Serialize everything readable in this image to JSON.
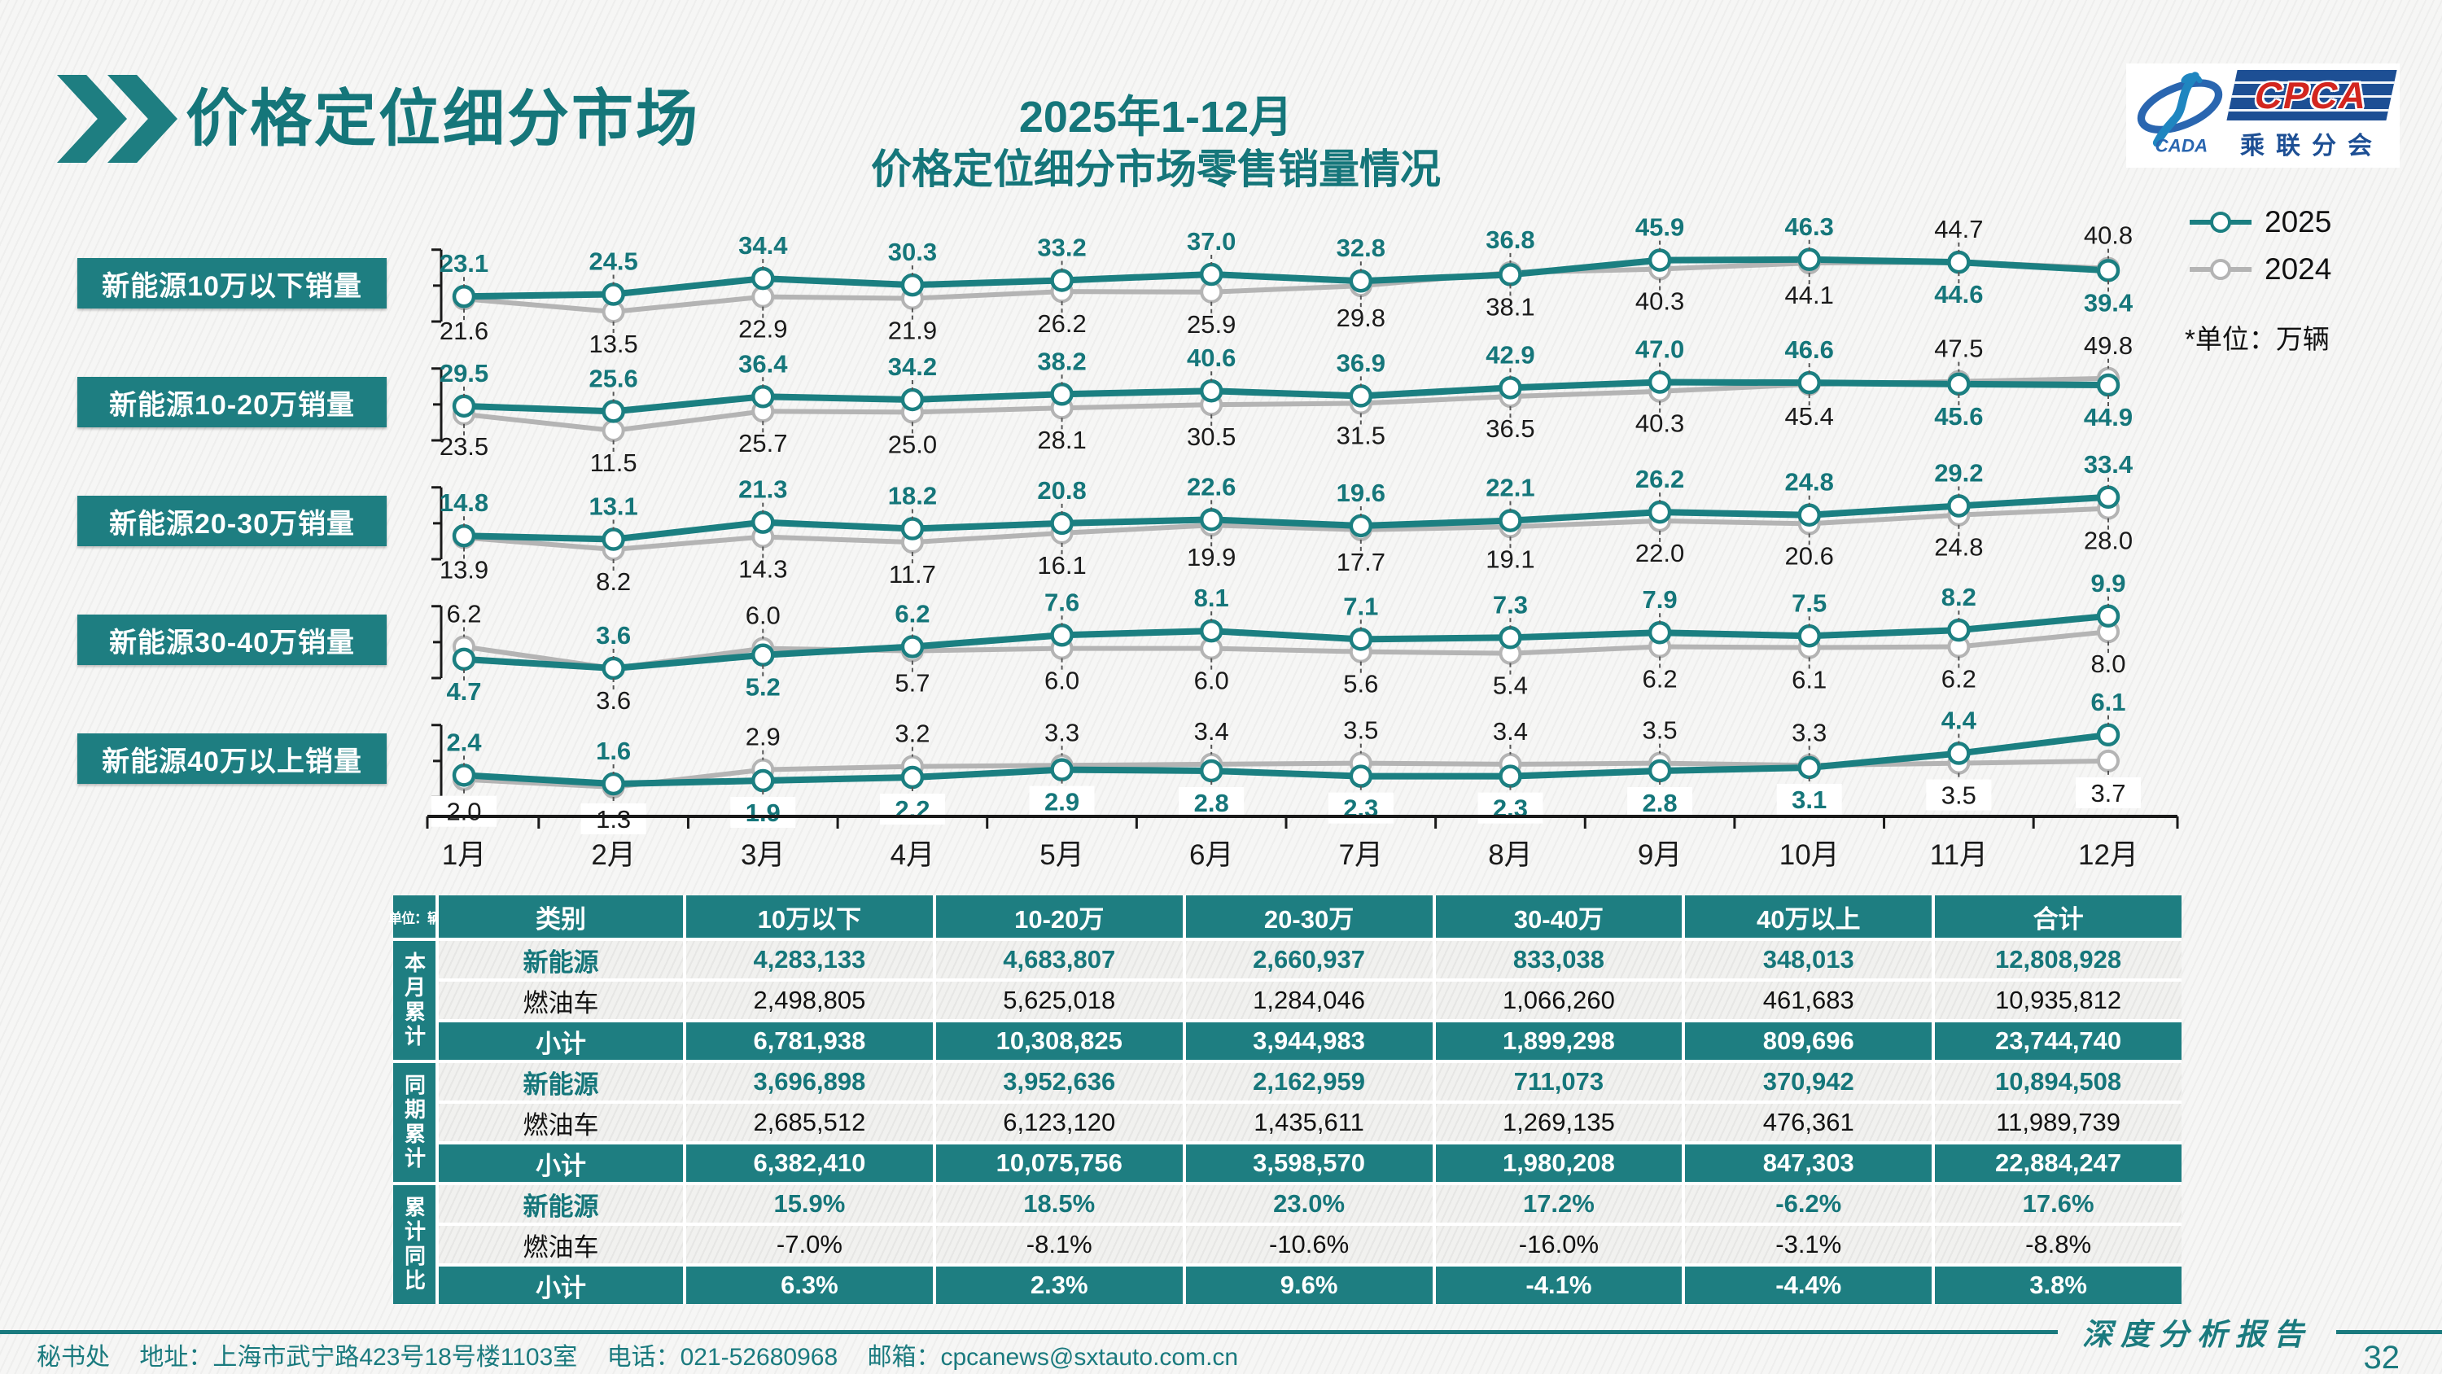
{
  "page": {
    "title": "价格定位细分市场",
    "chart_title_line1": "2025年1-12月",
    "chart_title_line2": "价格定位细分市场零售销量情况",
    "unit_note": "*单位：万辆",
    "report_label": "深度分析报告",
    "page_number": "32"
  },
  "logo": {
    "cpca": "CPCA",
    "cada": "CADA",
    "sub": "乘联分会"
  },
  "legend": [
    {
      "label": "2025",
      "color": "#1b7f81"
    },
    {
      "label": "2024",
      "color": "#b4b4b4"
    }
  ],
  "chart_data": {
    "type": "line",
    "unit": "万辆",
    "x": [
      "1月",
      "2月",
      "3月",
      "4月",
      "5月",
      "6月",
      "7月",
      "8月",
      "9月",
      "10月",
      "11月",
      "12月"
    ],
    "series_colors": {
      "2025": "#1b7f81",
      "2024": "#b4b4b4"
    },
    "panels": [
      {
        "label": "新能源10万以下销量",
        "series": [
          {
            "name": "2025",
            "values": [
              23.1,
              24.5,
              34.4,
              30.3,
              33.2,
              37.0,
              32.8,
              36.8,
              45.9,
              46.3,
              44.6,
              39.4
            ]
          },
          {
            "name": "2024",
            "values": [
              21.6,
              13.5,
              22.9,
              21.9,
              26.2,
              25.9,
              29.8,
              38.1,
              40.3,
              44.1,
              44.7,
              40.8
            ]
          }
        ],
        "label_top": [
          "2025",
          "2025",
          "2025",
          "2025",
          "2025",
          "2025",
          "2025",
          "2025",
          "2025",
          "2025",
          "2024",
          "2024"
        ]
      },
      {
        "label": "新能源10-20万销量",
        "series": [
          {
            "name": "2025",
            "values": [
              29.5,
              25.6,
              36.4,
              34.2,
              38.2,
              40.6,
              36.9,
              42.9,
              47.0,
              46.6,
              45.6,
              44.9
            ]
          },
          {
            "name": "2024",
            "values": [
              23.5,
              11.5,
              25.7,
              25.0,
              28.1,
              30.5,
              31.5,
              36.5,
              40.3,
              45.4,
              47.5,
              49.8
            ]
          }
        ],
        "label_top": [
          "2025",
          "2025",
          "2025",
          "2025",
          "2025",
          "2025",
          "2025",
          "2025",
          "2025",
          "2025",
          "2024",
          "2024"
        ]
      },
      {
        "label": "新能源20-30万销量",
        "series": [
          {
            "name": "2025",
            "values": [
              14.8,
              13.1,
              21.3,
              18.2,
              20.8,
              22.6,
              19.6,
              22.1,
              26.2,
              24.8,
              29.2,
              33.4
            ]
          },
          {
            "name": "2024",
            "values": [
              13.9,
              8.2,
              14.3,
              11.7,
              16.1,
              19.9,
              17.7,
              19.1,
              22.0,
              20.6,
              24.8,
              28.0
            ]
          }
        ],
        "label_top": [
          "2025",
          "2025",
          "2025",
          "2025",
          "2025",
          "2025",
          "2025",
          "2025",
          "2025",
          "2025",
          "2025",
          "2025"
        ]
      },
      {
        "label": "新能源30-40万销量",
        "series": [
          {
            "name": "2025",
            "values": [
              4.7,
              3.6,
              5.2,
              6.2,
              7.6,
              8.1,
              7.1,
              7.3,
              7.9,
              7.5,
              8.2,
              9.9
            ]
          },
          {
            "name": "2024",
            "values": [
              6.2,
              3.6,
              6.0,
              5.7,
              6.0,
              6.0,
              5.6,
              5.4,
              6.2,
              6.1,
              6.2,
              8.0
            ]
          }
        ],
        "label_top": [
          "2024",
          "2025",
          "2024",
          "2025",
          "2025",
          "2025",
          "2025",
          "2025",
          "2025",
          "2025",
          "2025",
          "2025"
        ]
      },
      {
        "label": "新能源40万以上销量",
        "series": [
          {
            "name": "2025",
            "values": [
              2.4,
              1.6,
              1.9,
              2.2,
              2.9,
              2.8,
              2.3,
              2.3,
              2.8,
              3.1,
              4.4,
              6.1
            ]
          },
          {
            "name": "2024",
            "values": [
              2.0,
              1.3,
              2.9,
              3.2,
              3.3,
              3.4,
              3.5,
              3.4,
              3.5,
              3.3,
              3.5,
              3.7
            ]
          }
        ],
        "label_top": [
          "2025",
          "2025",
          "2024",
          "2024",
          "2024",
          "2024",
          "2024",
          "2024",
          "2024",
          "2024",
          "2025",
          "2025"
        ]
      }
    ]
  },
  "table": {
    "unit_label": "单位：辆",
    "headers": [
      "类别",
      "10万以下",
      "10-20万",
      "20-30万",
      "30-40万",
      "40万以上",
      "合计"
    ],
    "groups": [
      {
        "label": "本月累计",
        "rows": [
          {
            "label": "新能源",
            "type": "nev",
            "cells": [
              "4,283,133",
              "4,683,807",
              "2,660,937",
              "833,038",
              "348,013",
              "12,808,928"
            ]
          },
          {
            "label": "燃油车",
            "type": "ice",
            "cells": [
              "2,498,805",
              "5,625,018",
              "1,284,046",
              "1,066,260",
              "461,683",
              "10,935,812"
            ]
          },
          {
            "label": "小计",
            "type": "sub",
            "cells": [
              "6,781,938",
              "10,308,825",
              "3,944,983",
              "1,899,298",
              "809,696",
              "23,744,740"
            ]
          }
        ]
      },
      {
        "label": "同期累计",
        "rows": [
          {
            "label": "新能源",
            "type": "nev",
            "cells": [
              "3,696,898",
              "3,952,636",
              "2,162,959",
              "711,073",
              "370,942",
              "10,894,508"
            ]
          },
          {
            "label": "燃油车",
            "type": "ice",
            "cells": [
              "2,685,512",
              "6,123,120",
              "1,435,611",
              "1,269,135",
              "476,361",
              "11,989,739"
            ]
          },
          {
            "label": "小计",
            "type": "sub",
            "cells": [
              "6,382,410",
              "10,075,756",
              "3,598,570",
              "1,980,208",
              "847,303",
              "22,884,247"
            ]
          }
        ]
      },
      {
        "label": "累计同比",
        "rows": [
          {
            "label": "新能源",
            "type": "nev",
            "cells": [
              "15.9%",
              "18.5%",
              "23.0%",
              "17.2%",
              "-6.2%",
              "17.6%"
            ]
          },
          {
            "label": "燃油车",
            "type": "ice",
            "cells": [
              "-7.0%",
              "-8.1%",
              "-10.6%",
              "-16.0%",
              "-3.1%",
              "-8.8%"
            ]
          },
          {
            "label": "小计",
            "type": "sub",
            "cells": [
              "6.3%",
              "2.3%",
              "9.6%",
              "-4.1%",
              "-4.4%",
              "3.8%"
            ]
          }
        ]
      }
    ]
  },
  "footer": {
    "secretariat": "秘书处",
    "address": "地址：上海市武宁路423号18号楼1103室",
    "phone": "电话：021-52680968",
    "email": "邮箱：cpcanews@sxtauto.com.cn"
  }
}
